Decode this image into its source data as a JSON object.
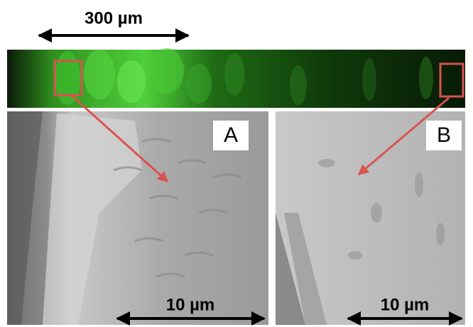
{
  "overview": {
    "scale_bar": "300 µm"
  },
  "panels": [
    {
      "label": "A",
      "scale_bar": "10 µm"
    },
    {
      "label": "B",
      "scale_bar": "10 µm"
    }
  ]
}
